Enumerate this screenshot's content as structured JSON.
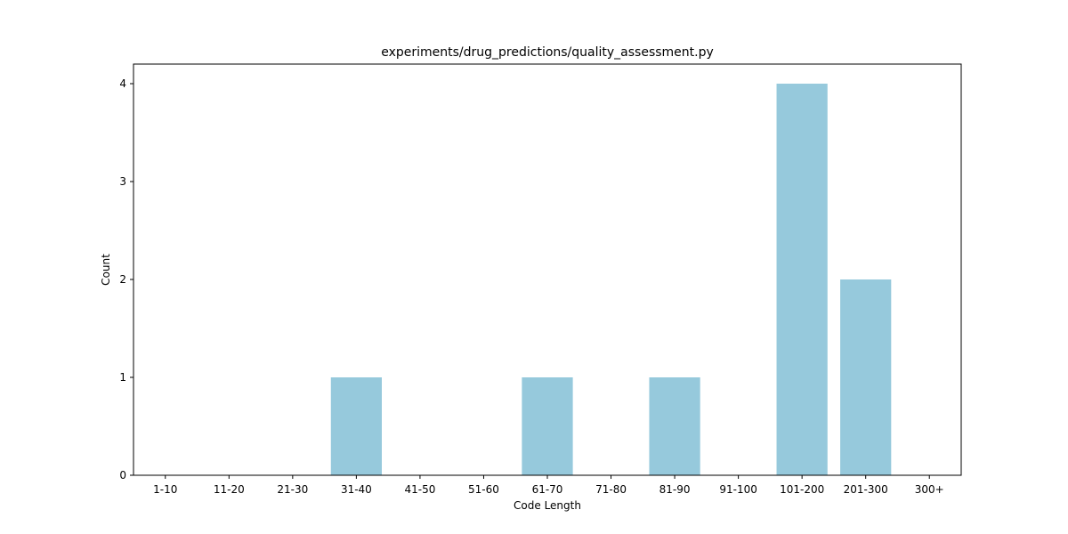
{
  "chart_data": {
    "type": "bar",
    "title": "experiments/drug_predictions/quality_assessment.py",
    "xlabel": "Code Length",
    "ylabel": "Count",
    "categories": [
      "1-10",
      "11-20",
      "21-30",
      "31-40",
      "41-50",
      "51-60",
      "61-70",
      "71-80",
      "81-90",
      "91-100",
      "101-200",
      "201-300",
      "300+"
    ],
    "values": [
      0,
      0,
      0,
      1,
      0,
      0,
      1,
      0,
      1,
      0,
      4,
      2,
      0
    ],
    "ylim": [
      0,
      4.2
    ],
    "yticks": [
      0,
      1,
      2,
      3,
      4
    ],
    "grid": false,
    "legend": "none",
    "bar_color": "#96c9dc"
  }
}
